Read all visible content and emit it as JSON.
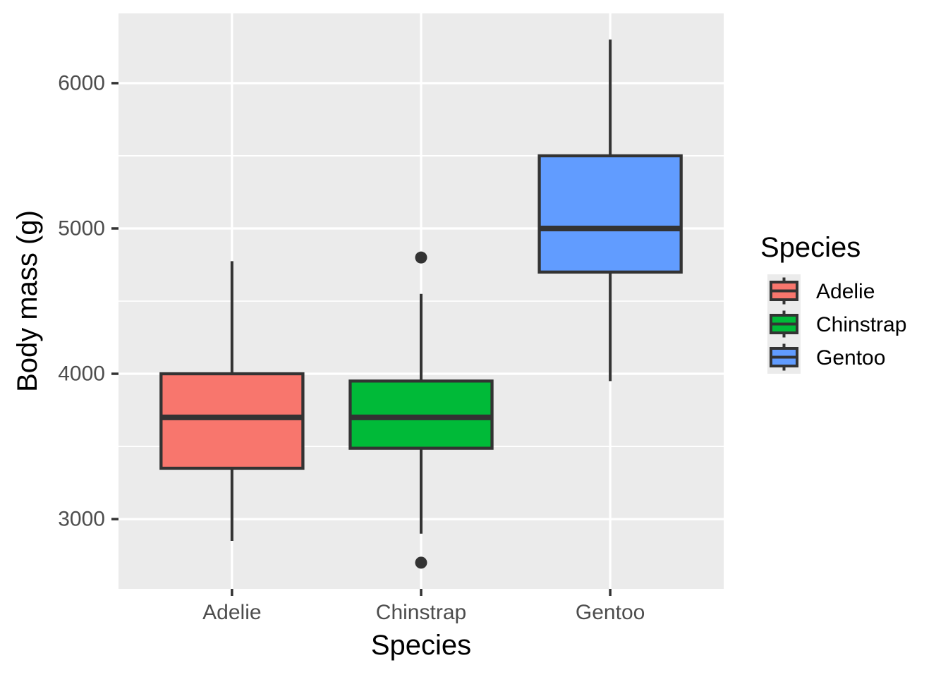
{
  "chart_data": {
    "type": "boxplot",
    "title": "",
    "xlabel": "Species",
    "ylabel": "Body mass (g)",
    "categories": [
      "Adelie",
      "Chinstrap",
      "Gentoo"
    ],
    "series": [
      {
        "name": "Adelie",
        "fill": "#F8766D",
        "whisker_low": 2850,
        "q1": 3350,
        "median": 3700,
        "q3": 4000,
        "whisker_high": 4775,
        "outliers": []
      },
      {
        "name": "Chinstrap",
        "fill": "#00BA38",
        "whisker_low": 2900,
        "q1": 3487.5,
        "median": 3700,
        "q3": 3950,
        "whisker_high": 4550,
        "outliers": [
          2700,
          4800
        ]
      },
      {
        "name": "Gentoo",
        "fill": "#619CFF",
        "whisker_low": 3950,
        "q1": 4700,
        "median": 5000,
        "q3": 5500,
        "whisker_high": 6300,
        "outliers": []
      }
    ],
    "y_axis": {
      "label": "Body mass (g)",
      "ticks": [
        6000,
        5000,
        4000,
        3000
      ],
      "minor_gridlines": [
        5500,
        4500,
        3500
      ],
      "range": [
        2520,
        6480
      ],
      "grid": true
    },
    "x_axis": {
      "label": "Species",
      "tick_labels": [
        "Adelie",
        "Chinstrap",
        "Gentoo"
      ]
    },
    "legend": {
      "title": "Species",
      "position": "right",
      "entries": [
        {
          "label": "Adelie",
          "color": "#F8766D"
        },
        {
          "label": "Chinstrap",
          "color": "#00BA38"
        },
        {
          "label": "Gentoo",
          "color": "#619CFF"
        }
      ]
    },
    "style_colors": {
      "panel_background": "#EBEBEB",
      "gridline": "#FFFFFF",
      "box_stroke": "#333333",
      "axis_text": "#4D4D4D",
      "title_text": "#000000",
      "legend_key_background": "#EBEBEB",
      "outlier": "#333333"
    }
  }
}
